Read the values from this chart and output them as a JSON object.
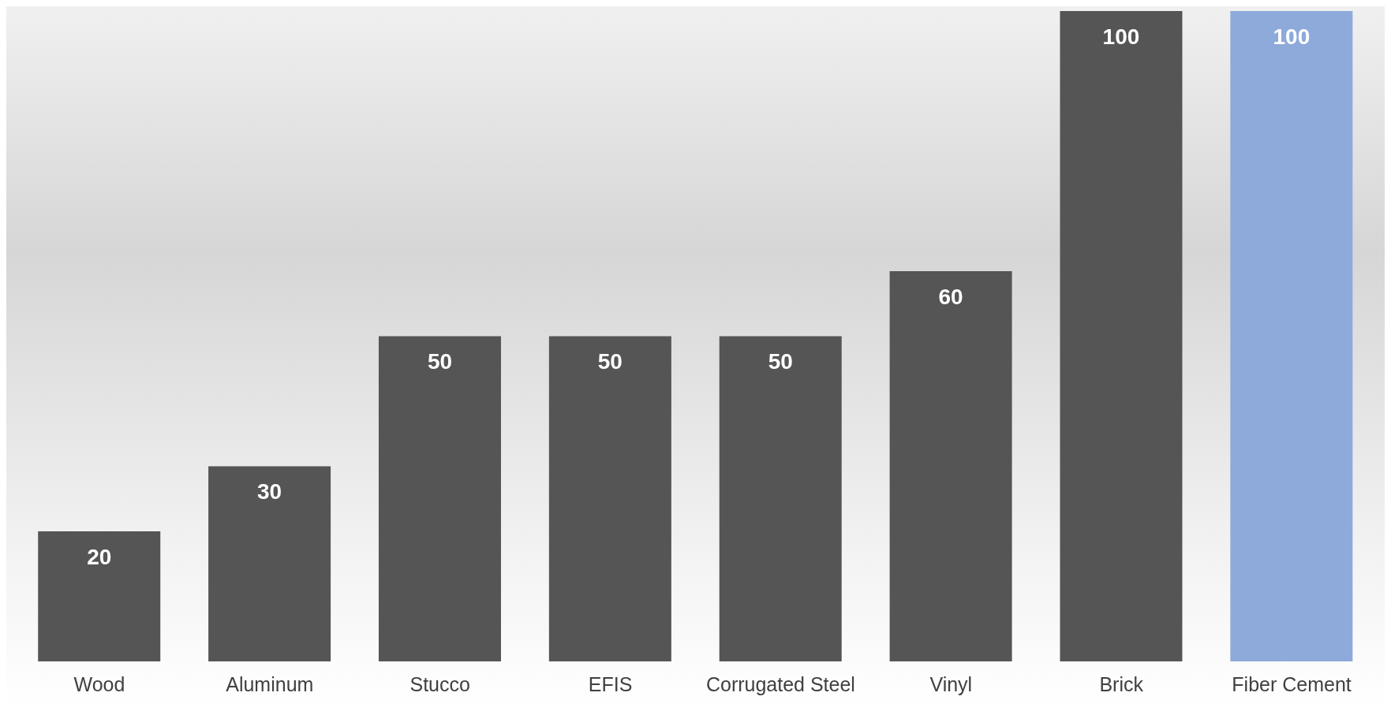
{
  "chart_data": {
    "type": "bar",
    "categories": [
      "Wood",
      "Aluminum",
      "Stucco",
      "EFIS",
      "Corrugated Steel",
      "Vinyl",
      "Brick",
      "Fiber Cement"
    ],
    "values": [
      20,
      30,
      50,
      50,
      50,
      60,
      100,
      100
    ],
    "colors": [
      "#555555",
      "#555555",
      "#555555",
      "#555555",
      "#555555",
      "#555555",
      "#555555",
      "#8eaadb"
    ],
    "data_labels": true,
    "grid": false,
    "legend": false
  }
}
